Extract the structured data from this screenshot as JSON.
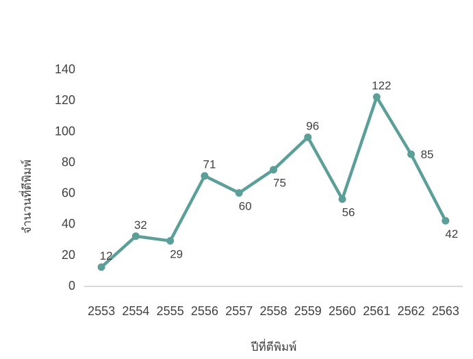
{
  "chart_data": {
    "type": "line",
    "title": "",
    "xlabel": "ปีที่ตีพิมพ์",
    "ylabel": "จำนวนที่ตีพิมพ์",
    "categories": [
      "2553",
      "2554",
      "2555",
      "2556",
      "2557",
      "2558",
      "2559",
      "2560",
      "2561",
      "2562",
      "2563"
    ],
    "series": [
      {
        "name": "จำนวนที่ตีพิมพ์",
        "values": [
          12,
          32,
          29,
          71,
          60,
          75,
          96,
          56,
          122,
          85,
          42
        ]
      }
    ],
    "data_labels_visible": true,
    "data_label_placements": [
      "above",
      "above",
      "below",
      "above",
      "below",
      "below",
      "above",
      "below",
      "above",
      "right",
      "below"
    ],
    "ylim": [
      0,
      140
    ],
    "yticks": [
      0,
      20,
      40,
      60,
      80,
      100,
      120,
      140
    ],
    "grid": "off",
    "legend": "none",
    "colors": {
      "line": "#5B9F98",
      "marker": "#5B9F98",
      "tick_text": "#404040",
      "data_label_text": "#404040",
      "axis_title_text": "#3f3f3f",
      "axis_line": "#D9D9D9",
      "background": "#ffffff"
    }
  }
}
